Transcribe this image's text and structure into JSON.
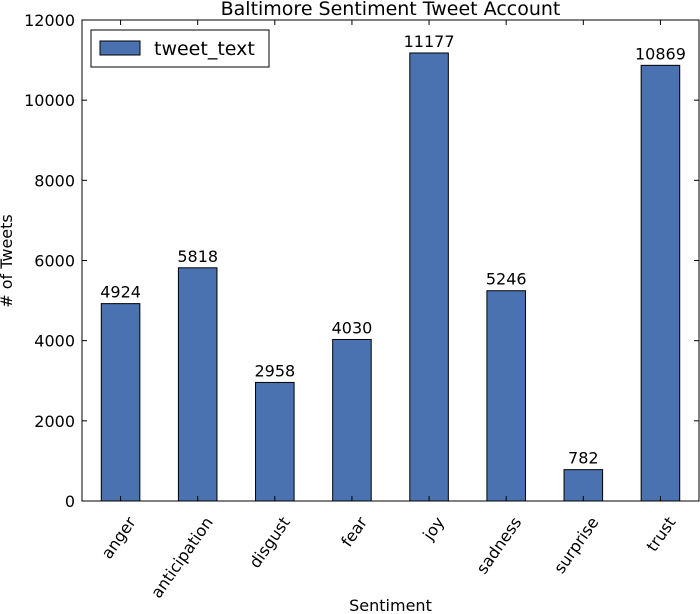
{
  "chart_data": {
    "type": "bar",
    "title": "Baltimore Sentiment Tweet Account",
    "xlabel": "Sentiment",
    "ylabel": "# of Tweets",
    "categories": [
      "anger",
      "anticipation",
      "disgust",
      "fear",
      "joy",
      "sadness",
      "surprise",
      "trust"
    ],
    "series": [
      {
        "name": "tweet_text",
        "values": [
          4924,
          5818,
          2958,
          4030,
          11177,
          5246,
          782,
          10869
        ],
        "color": "#4a72b0"
      }
    ],
    "ylim": [
      0,
      12000
    ],
    "yticks": [
      0,
      2000,
      4000,
      6000,
      8000,
      10000,
      12000
    ],
    "grid": false,
    "legend": "top-left",
    "data_labels": [
      "4924",
      "5818",
      "2958",
      "4030",
      "11177",
      "5246",
      "782",
      "10869"
    ]
  }
}
